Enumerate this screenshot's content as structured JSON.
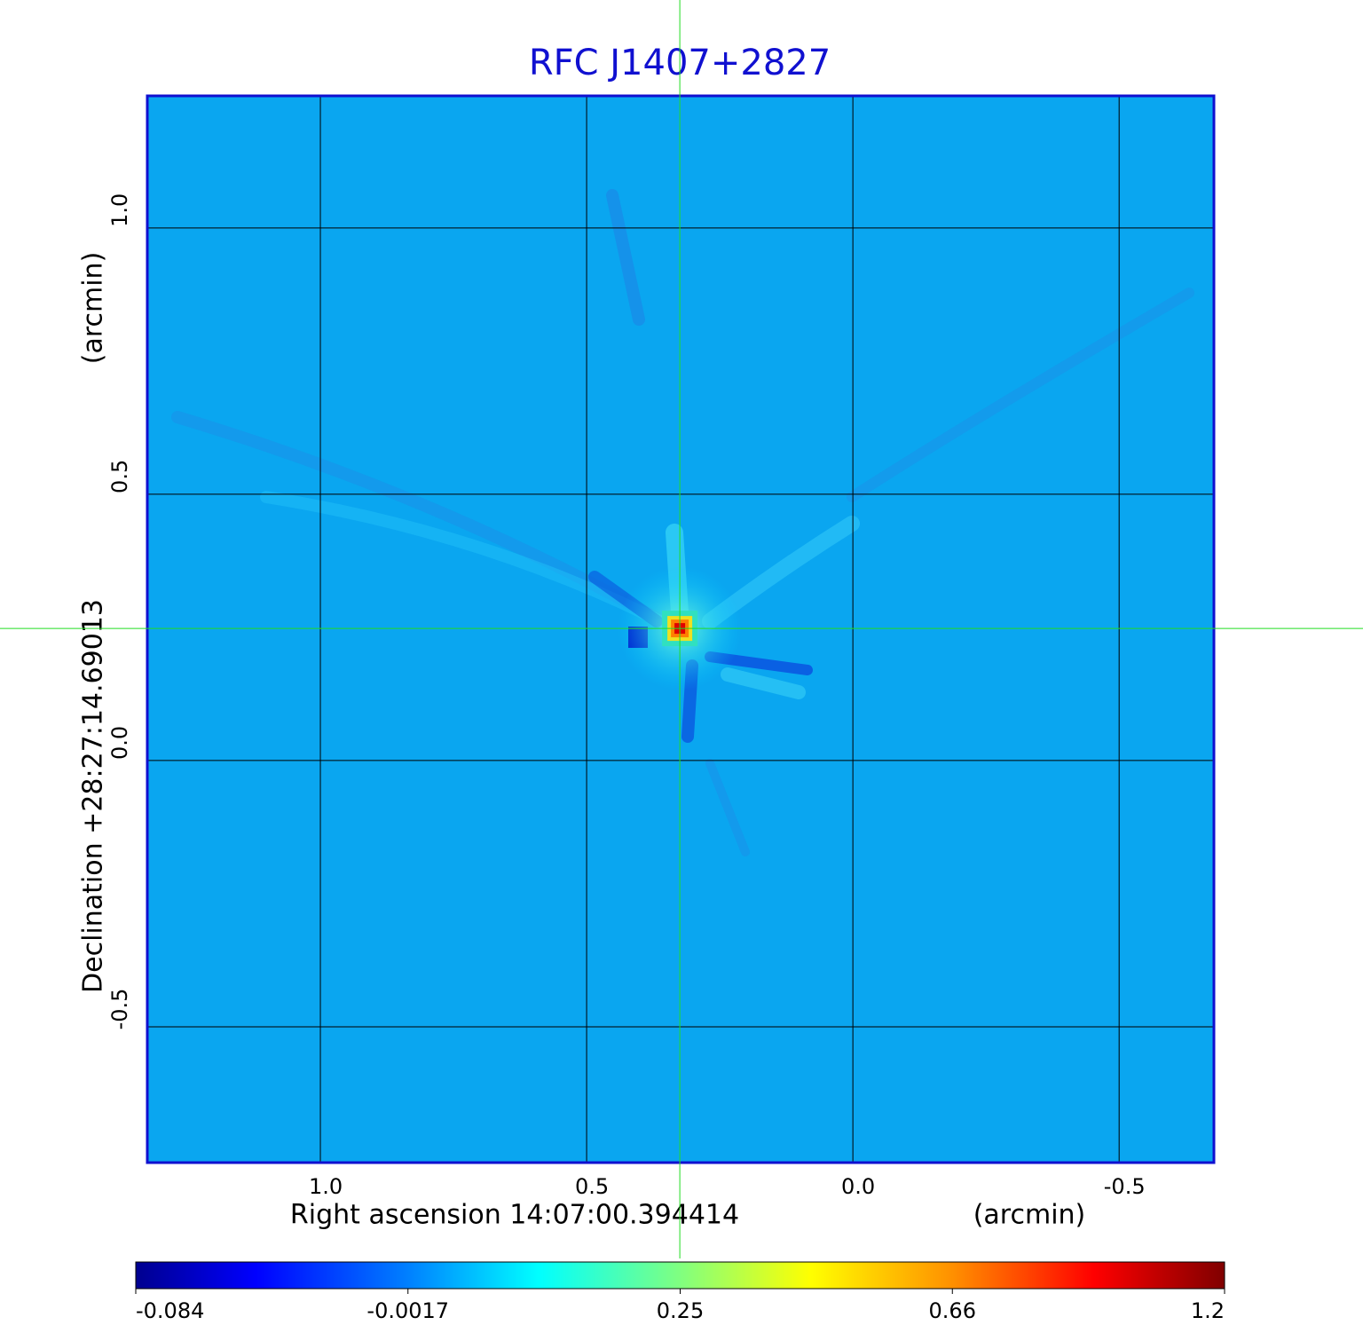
{
  "chart_data": {
    "type": "image",
    "title": "RFC J1407+2827",
    "x_label": "Right ascension  14:07:00.394414",
    "x_unit": "(arcmin)",
    "y_label": "Declination  +28:27:14.69013",
    "y_unit": "(arcmin)",
    "xlim": [
      1.325,
      -0.678
    ],
    "ylim": [
      -0.755,
      1.248
    ],
    "xticks": [
      {
        "value": 1,
        "label": "1.0"
      },
      0.5,
      {
        "value": 0,
        "label": "0.0"
      },
      -0.5
    ],
    "yticks": [
      -0.5,
      {
        "value": 0,
        "label": "0.0"
      },
      0.5,
      {
        "value": 1,
        "label": "1.0"
      }
    ],
    "grid": true,
    "crosshair": [
      0.325,
      0.248
    ],
    "colormap": "jet",
    "clim": [
      -0.084,
      1.2
    ],
    "colorbar_ticks": [
      -0.084,
      -0.0017,
      0.25,
      0.66,
      1.2
    ]
  }
}
